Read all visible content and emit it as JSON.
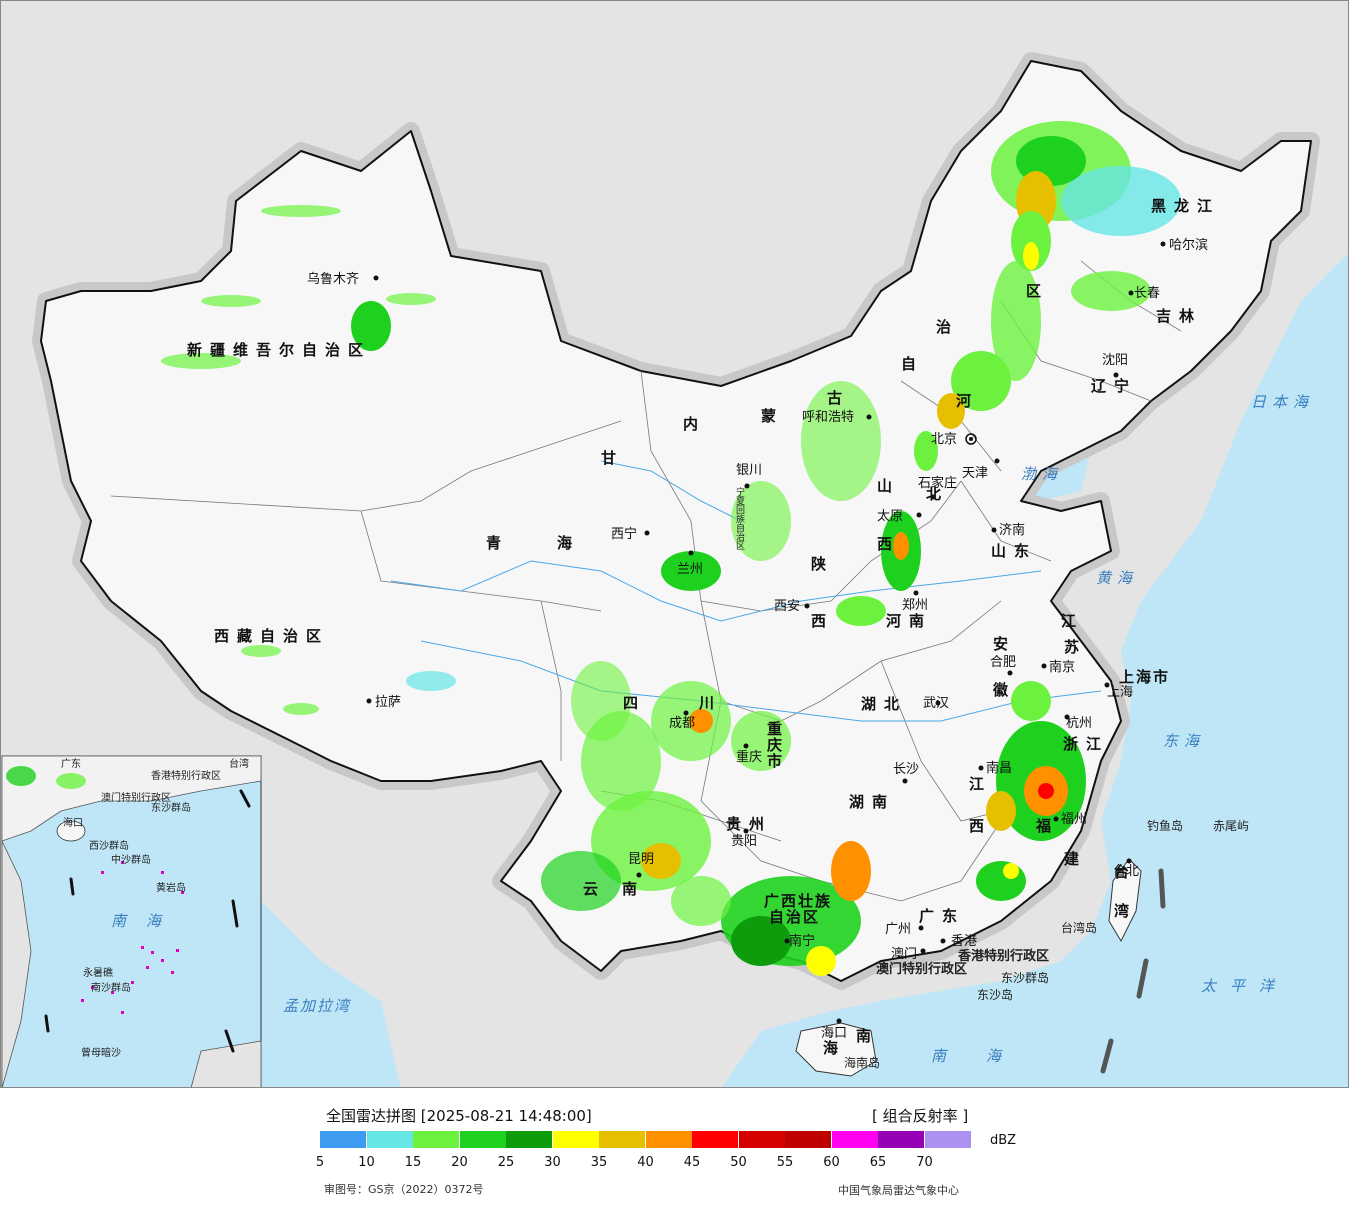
{
  "map": {
    "provinces": [
      {
        "id": "xinjiang",
        "text": "新疆维吾尔自治区"
      },
      {
        "id": "xizang",
        "text": "西藏自治区"
      },
      {
        "id": "qinghai-a",
        "text": "青"
      },
      {
        "id": "qinghai-b",
        "text": "海"
      },
      {
        "id": "gansu",
        "text": "甘"
      },
      {
        "id": "neimenggu-a",
        "text": "内"
      },
      {
        "id": "neimenggu-b",
        "text": "蒙"
      },
      {
        "id": "neimenggu-c",
        "text": "古"
      },
      {
        "id": "neimenggu-d",
        "text": "自"
      },
      {
        "id": "neimenggu-e",
        "text": "治"
      },
      {
        "id": "neimenggu-f",
        "text": "区"
      },
      {
        "id": "heilongjiang",
        "text": "黑龙江"
      },
      {
        "id": "jilin",
        "text": "吉林"
      },
      {
        "id": "liaoning",
        "text": "辽宁"
      },
      {
        "id": "hebei-a",
        "text": "河"
      },
      {
        "id": "hebei-b",
        "text": "北"
      },
      {
        "id": "shanxi-a",
        "text": "山"
      },
      {
        "id": "shanxi-b",
        "text": "西"
      },
      {
        "id": "shandong",
        "text": "山东"
      },
      {
        "id": "shaanxi-a",
        "text": "陕"
      },
      {
        "id": "shaanxi-b",
        "text": "西"
      },
      {
        "id": "henan",
        "text": "河南"
      },
      {
        "id": "jiangsu-a",
        "text": "江"
      },
      {
        "id": "jiangsu-b",
        "text": "苏"
      },
      {
        "id": "anhui-a",
        "text": "安"
      },
      {
        "id": "anhui-b",
        "text": "徽"
      },
      {
        "id": "shanghai",
        "text": "上海市"
      },
      {
        "id": "zhejiang",
        "text": "浙江"
      },
      {
        "id": "hubei",
        "text": "湖北"
      },
      {
        "id": "sichuan-a",
        "text": "四"
      },
      {
        "id": "sichuan-b",
        "text": "川"
      },
      {
        "id": "chongqing",
        "text": "重庆市"
      },
      {
        "id": "hunan",
        "text": "湖南"
      },
      {
        "id": "jiangxi-a",
        "text": "江"
      },
      {
        "id": "jiangxi-b",
        "text": "西"
      },
      {
        "id": "fujian-a",
        "text": "福"
      },
      {
        "id": "fujian-b",
        "text": "建"
      },
      {
        "id": "guizhou",
        "text": "贵州"
      },
      {
        "id": "yunnan",
        "text": "云南"
      },
      {
        "id": "guangxi-a",
        "text": "广西壮族"
      },
      {
        "id": "guangxi-b",
        "text": "自治区"
      },
      {
        "id": "guangdong",
        "text": "广东"
      },
      {
        "id": "hainan-a",
        "text": "海"
      },
      {
        "id": "hainan-b",
        "text": "南"
      },
      {
        "id": "ningxia",
        "text": "宁夏回族自治区"
      },
      {
        "id": "taiwan-a",
        "text": "台"
      },
      {
        "id": "taiwan-b",
        "text": "湾"
      },
      {
        "id": "hk",
        "text": "香港特别行政区"
      },
      {
        "id": "macau",
        "text": "澳门特别行政区"
      }
    ],
    "cities": [
      {
        "id": "urumqi",
        "text": "乌鲁木齐"
      },
      {
        "id": "lhasa",
        "text": "拉萨"
      },
      {
        "id": "xining",
        "text": "西宁"
      },
      {
        "id": "lanzhou",
        "text": "兰州"
      },
      {
        "id": "yinchuan",
        "text": "银川"
      },
      {
        "id": "hohhot",
        "text": "呼和浩特"
      },
      {
        "id": "beijing",
        "text": "北京"
      },
      {
        "id": "tianjin",
        "text": "天津"
      },
      {
        "id": "shijiazhuang",
        "text": "石家庄"
      },
      {
        "id": "taiyuan",
        "text": "太原"
      },
      {
        "id": "jinan",
        "text": "济南"
      },
      {
        "id": "zhengzhou",
        "text": "郑州"
      },
      {
        "id": "xian",
        "text": "西安"
      },
      {
        "id": "harbin",
        "text": "哈尔滨"
      },
      {
        "id": "changchun",
        "text": "长春"
      },
      {
        "id": "shenyang",
        "text": "沈阳"
      },
      {
        "id": "hefei",
        "text": "合肥"
      },
      {
        "id": "nanjing",
        "text": "南京"
      },
      {
        "id": "shanghai-c",
        "text": "上海"
      },
      {
        "id": "hangzhou",
        "text": "杭州"
      },
      {
        "id": "wuhan",
        "text": "武汉"
      },
      {
        "id": "chengdu",
        "text": "成都"
      },
      {
        "id": "chongqing-c",
        "text": "重庆"
      },
      {
        "id": "changsha",
        "text": "长沙"
      },
      {
        "id": "nanchang",
        "text": "南昌"
      },
      {
        "id": "fuzhou",
        "text": "福州"
      },
      {
        "id": "guiyang",
        "text": "贵阳"
      },
      {
        "id": "kunming",
        "text": "昆明"
      },
      {
        "id": "nanning",
        "text": "南宁"
      },
      {
        "id": "guangzhou",
        "text": "广州"
      },
      {
        "id": "macau-c",
        "text": "澳门"
      },
      {
        "id": "hongkong-c",
        "text": "香港"
      },
      {
        "id": "haikou",
        "text": "海口"
      },
      {
        "id": "taibei",
        "text": "台北"
      }
    ],
    "seas": [
      {
        "id": "bohai",
        "text": "渤海"
      },
      {
        "id": "huanghai",
        "text": "黄海"
      },
      {
        "id": "donghai",
        "text": "东海"
      },
      {
        "id": "nanhai",
        "text": "南海"
      },
      {
        "id": "taipingyang",
        "text": "太平洋"
      },
      {
        "id": "ribenhai",
        "text": "日本海"
      },
      {
        "id": "mengjialawan",
        "text": "孟加拉湾"
      }
    ],
    "islands": [
      {
        "id": "diaoyudao",
        "text": "钓鱼岛"
      },
      {
        "id": "chiweiyu",
        "text": "赤尾屿"
      },
      {
        "id": "taiwandao",
        "text": "台湾岛"
      },
      {
        "id": "dongshaqundao",
        "text": "东沙群岛"
      },
      {
        "id": "dongshadao",
        "text": "东沙岛"
      },
      {
        "id": "hainandao",
        "text": "海南岛"
      }
    ],
    "inset": {
      "title_sea": "南海",
      "labels": [
        "海口",
        "西沙群岛",
        "中沙群岛",
        "黄岩岛",
        "南沙群岛",
        "永暑礁",
        "曾母暗沙",
        "东沙群岛",
        "香港特别行政区",
        "澳门特别行政区",
        "台湾",
        "广东"
      ]
    }
  },
  "legend": {
    "title": "全国雷达拼图 [2025-08-21 14:48:00]",
    "product": "[ 组合反射率 ]",
    "unit": "dBZ",
    "colors": [
      "#3d9bf0",
      "#66e5e5",
      "#6cf23e",
      "#1ed11e",
      "#0c9c0c",
      "#ffff00",
      "#e6c000",
      "#ff9000",
      "#ff0000",
      "#d60000",
      "#c00000",
      "#ff00f0",
      "#9600b4",
      "#ad90f0"
    ],
    "ticks": [
      "5",
      "10",
      "15",
      "20",
      "25",
      "30",
      "35",
      "40",
      "45",
      "50",
      "55",
      "60",
      "65",
      "70"
    ],
    "note": "审图号：GS京（2022）0372号",
    "org": "中国气象局雷达气象中心"
  }
}
